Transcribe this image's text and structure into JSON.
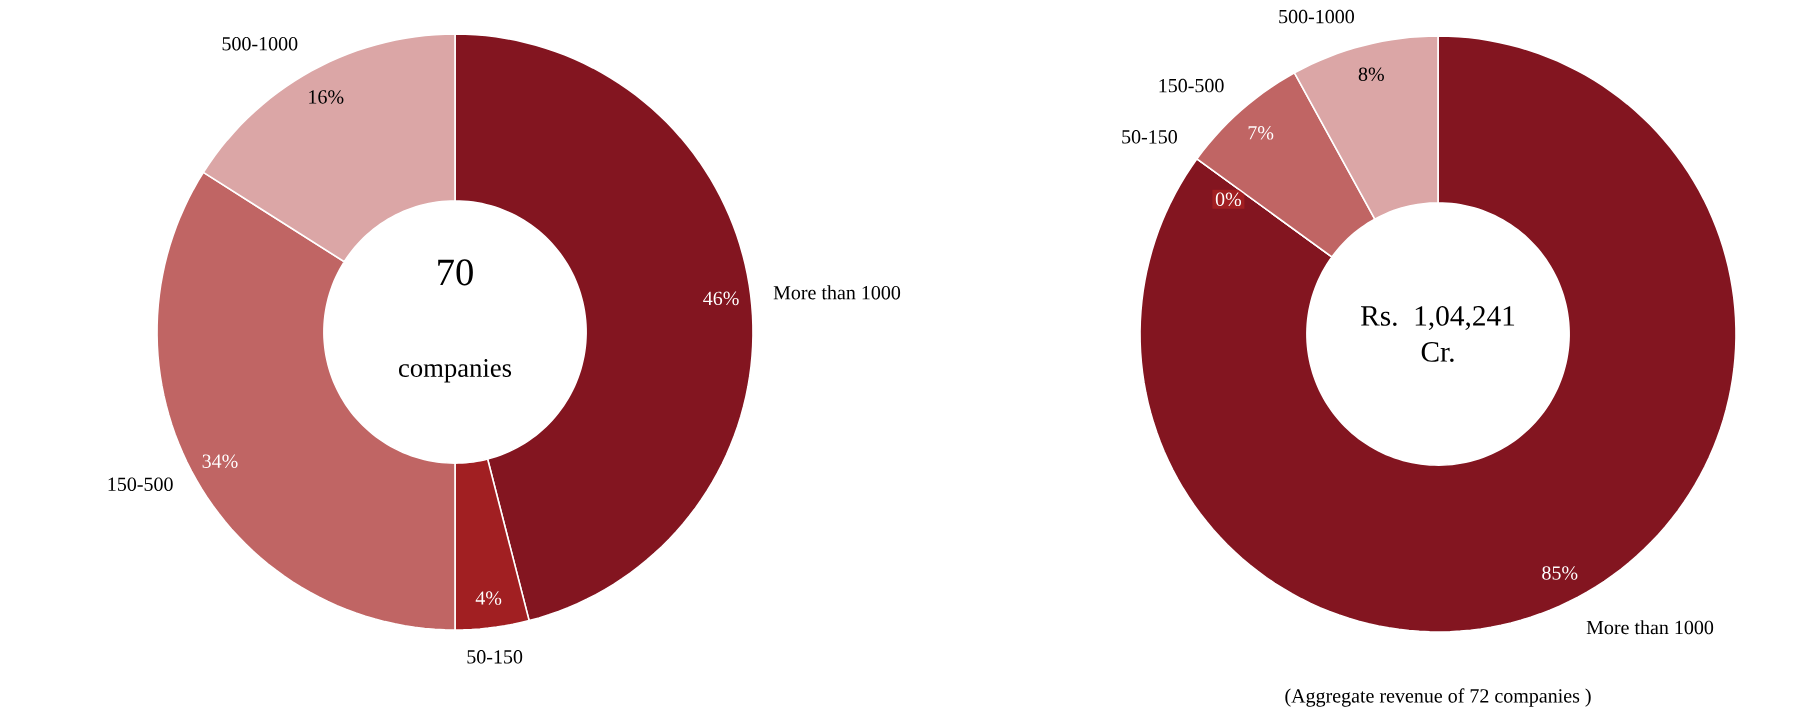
{
  "chart_data": [
    {
      "type": "donut",
      "title": "70",
      "subtitle": "companies",
      "categories": [
        "More than 1000",
        "50-150",
        "150-500",
        "500-1000"
      ],
      "values": [
        46,
        4,
        34,
        16
      ],
      "colors": [
        "#831520",
        "#a11f22",
        "#c06564",
        "#dba6a6"
      ],
      "value_labels": [
        "46%",
        "4%",
        "34%",
        "16%"
      ]
    },
    {
      "type": "donut",
      "title": "Rs. 1,04,241 Cr.",
      "categories": [
        "More than 1000",
        "50-150",
        "150-500",
        "500-1000"
      ],
      "values": [
        85,
        0,
        7,
        8
      ],
      "colors": [
        "#831520",
        "#a11f22",
        "#c06564",
        "#dba6a6"
      ],
      "value_labels": [
        "85%",
        "0%",
        "7%",
        "8%"
      ],
      "annotations": [
        "(Aggregate revenue of 72 companies )"
      ]
    }
  ]
}
